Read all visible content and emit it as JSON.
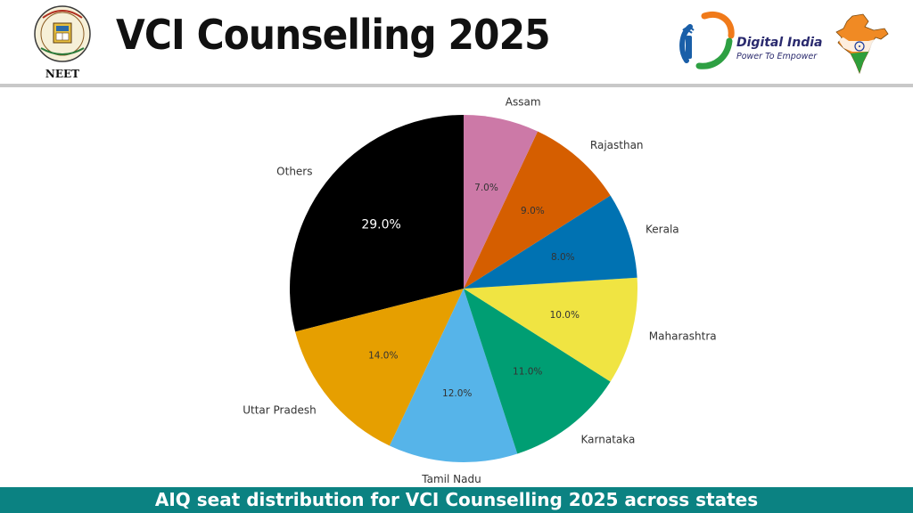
{
  "header": {
    "title": "VCI Counselling 2025",
    "neet_logo_label": "NEET",
    "digital_india": {
      "title": "Digital India",
      "tagline": "Power To Empower"
    }
  },
  "footer": {
    "caption": "AIQ seat distribution for VCI Counselling 2025 across states"
  },
  "chart_data": {
    "type": "pie",
    "start_angle_deg": 90,
    "direction": "counterclockwise",
    "value_format": "{v}%",
    "slices": [
      {
        "label": "Others",
        "value": 29.0,
        "color": "#000000",
        "label_color": "#ffffff"
      },
      {
        "label": "Uttar Pradesh",
        "value": 14.0,
        "color": "#e69f00",
        "label_color": "#333333"
      },
      {
        "label": "Tamil Nadu",
        "value": 12.0,
        "color": "#56b4e9",
        "label_color": "#333333"
      },
      {
        "label": "Karnataka",
        "value": 11.0,
        "color": "#009e73",
        "label_color": "#333333"
      },
      {
        "label": "Maharashtra",
        "value": 10.0,
        "color": "#f0e442",
        "label_color": "#333333"
      },
      {
        "label": "Kerala",
        "value": 8.0,
        "color": "#0072b2",
        "label_color": "#333333"
      },
      {
        "label": "Rajasthan",
        "value": 9.0,
        "color": "#d55e00",
        "label_color": "#333333"
      },
      {
        "label": "Assam",
        "value": 7.0,
        "color": "#cc79a7",
        "label_color": "#333333"
      }
    ]
  }
}
